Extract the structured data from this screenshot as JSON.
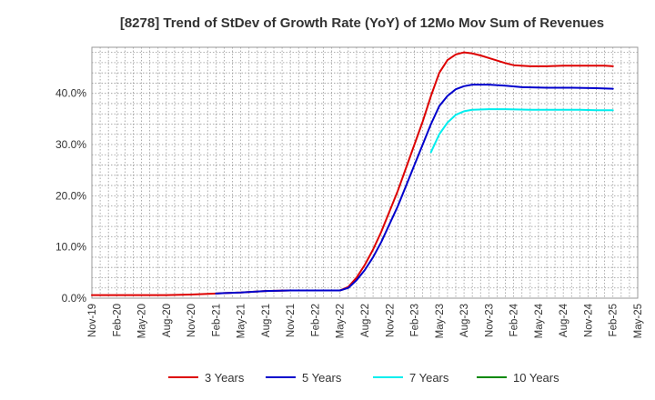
{
  "chart_data": {
    "type": "line",
    "title": "[8278]  Trend of StDev of Growth Rate (YoY) of 12Mo Mov Sum of Revenues",
    "xlabel": "",
    "ylabel": "",
    "ylim": [
      0,
      49
    ],
    "y_ticks": [
      0,
      10,
      20,
      30,
      40
    ],
    "y_tick_labels": [
      "0.0%",
      "10.0%",
      "20.0%",
      "30.0%",
      "40.0%"
    ],
    "x_tick_labels": [
      "Nov-19",
      "Feb-20",
      "May-20",
      "Aug-20",
      "Nov-20",
      "Feb-21",
      "May-21",
      "Aug-21",
      "Nov-21",
      "Feb-22",
      "May-22",
      "Aug-22",
      "Nov-22",
      "Feb-23",
      "May-23",
      "Aug-23",
      "Nov-23",
      "Feb-24",
      "May-24",
      "Aug-24",
      "Nov-24",
      "Feb-25",
      "May-25"
    ],
    "x_range_months": [
      0,
      66
    ],
    "grid": true,
    "legend_position": "bottom",
    "series": [
      {
        "name": "3 Years",
        "color": "#dd0000",
        "points": [
          [
            0,
            0.6
          ],
          [
            3,
            0.6
          ],
          [
            6,
            0.6
          ],
          [
            9,
            0.6
          ],
          [
            12,
            0.7
          ],
          [
            15,
            0.9
          ],
          [
            16,
            1.0
          ],
          [
            18,
            1.1
          ],
          [
            21,
            1.4
          ],
          [
            24,
            1.5
          ],
          [
            27,
            1.5
          ],
          [
            30,
            1.5
          ],
          [
            31,
            2.2
          ],
          [
            32,
            4.0
          ],
          [
            33,
            6.5
          ],
          [
            34,
            9.5
          ],
          [
            35,
            13.0
          ],
          [
            36,
            17.0
          ],
          [
            37,
            21.0
          ],
          [
            38,
            25.5
          ],
          [
            39,
            30.0
          ],
          [
            40,
            34.5
          ],
          [
            41,
            39.5
          ],
          [
            42,
            44.0
          ],
          [
            43,
            46.5
          ],
          [
            44,
            47.6
          ],
          [
            45,
            48.0
          ],
          [
            46,
            47.8
          ],
          [
            47,
            47.4
          ],
          [
            48,
            46.9
          ],
          [
            50,
            45.9
          ],
          [
            51,
            45.5
          ],
          [
            53,
            45.3
          ],
          [
            55,
            45.3
          ],
          [
            57,
            45.4
          ],
          [
            60,
            45.4
          ],
          [
            62,
            45.4
          ],
          [
            63,
            45.3
          ]
        ]
      },
      {
        "name": "5 Years",
        "color": "#0000cc",
        "points": [
          [
            15,
            0.9
          ],
          [
            16,
            1.0
          ],
          [
            18,
            1.1
          ],
          [
            21,
            1.4
          ],
          [
            24,
            1.5
          ],
          [
            27,
            1.5
          ],
          [
            30,
            1.5
          ],
          [
            31,
            2.0
          ],
          [
            32,
            3.5
          ],
          [
            33,
            5.5
          ],
          [
            34,
            8.0
          ],
          [
            35,
            11.0
          ],
          [
            36,
            14.5
          ],
          [
            37,
            18.0
          ],
          [
            38,
            22.0
          ],
          [
            39,
            26.0
          ],
          [
            40,
            30.0
          ],
          [
            41,
            34.0
          ],
          [
            42,
            37.5
          ],
          [
            43,
            39.5
          ],
          [
            44,
            40.8
          ],
          [
            45,
            41.4
          ],
          [
            46,
            41.7
          ],
          [
            48,
            41.7
          ],
          [
            50,
            41.5
          ],
          [
            52,
            41.2
          ],
          [
            55,
            41.1
          ],
          [
            58,
            41.1
          ],
          [
            61,
            41.0
          ],
          [
            63,
            40.9
          ]
        ]
      },
      {
        "name": "7 Years",
        "color": "#00eeee",
        "points": [
          [
            41,
            28.5
          ],
          [
            42,
            32.0
          ],
          [
            43,
            34.3
          ],
          [
            44,
            35.8
          ],
          [
            45,
            36.5
          ],
          [
            46,
            36.8
          ],
          [
            48,
            36.9
          ],
          [
            50,
            36.9
          ],
          [
            53,
            36.8
          ],
          [
            56,
            36.8
          ],
          [
            59,
            36.8
          ],
          [
            61,
            36.7
          ],
          [
            63,
            36.7
          ]
        ]
      },
      {
        "name": "10 Years",
        "color": "#008800",
        "points": []
      }
    ]
  }
}
